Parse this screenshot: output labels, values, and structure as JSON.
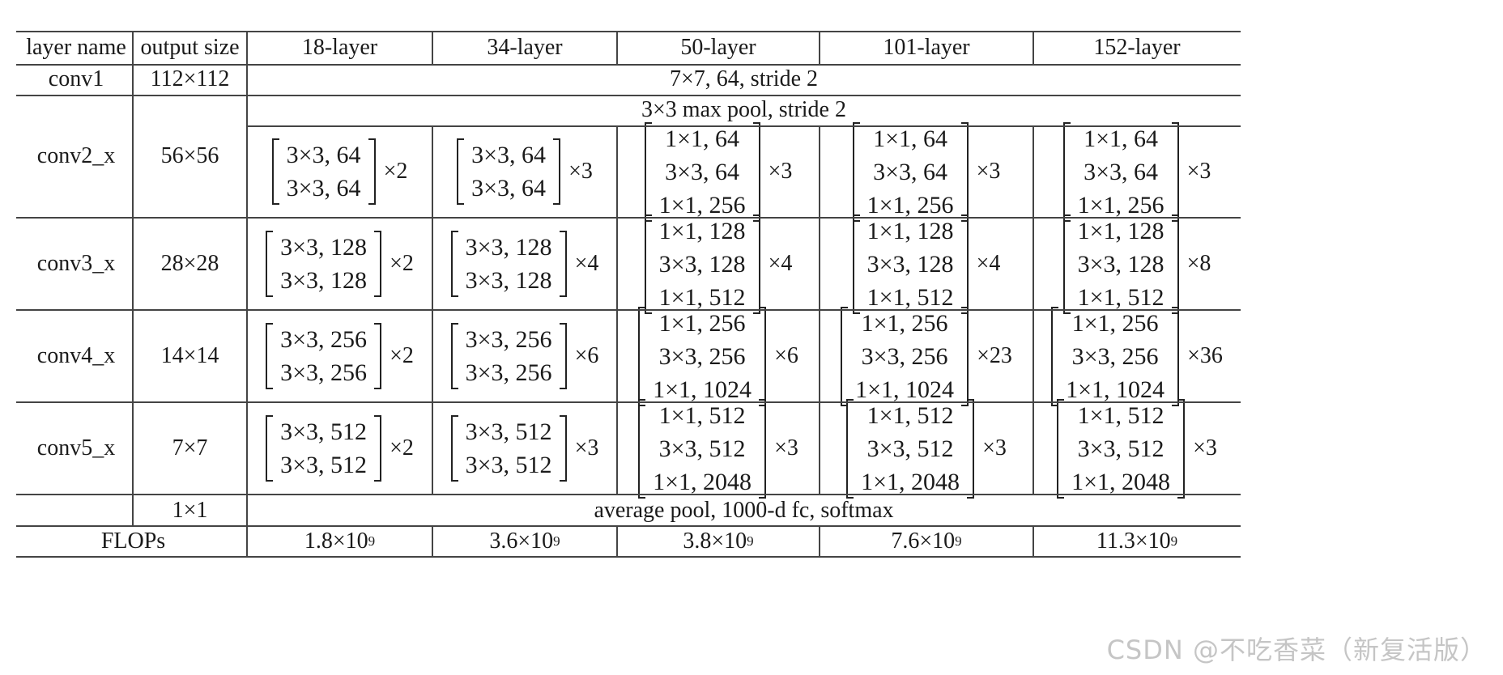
{
  "header": [
    "layer name",
    "output size",
    "18-layer",
    "34-layer",
    "50-layer",
    "101-layer",
    "152-layer"
  ],
  "conv1": {
    "name": "conv1",
    "size": "112×112",
    "desc": "7×7, 64, stride 2"
  },
  "pool": {
    "desc": "3×3 max pool, stride 2"
  },
  "rows": [
    {
      "name": "conv2_x",
      "size": "56×56",
      "blocks": [
        {
          "lines": [
            "3×3, 64",
            "3×3, 64"
          ],
          "mult": "×2"
        },
        {
          "lines": [
            "3×3, 64",
            "3×3, 64"
          ],
          "mult": "×3"
        },
        {
          "lines": [
            "1×1, 64",
            "3×3, 64",
            "1×1, 256"
          ],
          "mult": "×3"
        },
        {
          "lines": [
            "1×1, 64",
            "3×3, 64",
            "1×1, 256"
          ],
          "mult": "×3"
        },
        {
          "lines": [
            "1×1, 64",
            "3×3, 64",
            "1×1, 256"
          ],
          "mult": "×3"
        }
      ]
    },
    {
      "name": "conv3_x",
      "size": "28×28",
      "blocks": [
        {
          "lines": [
            "3×3, 128",
            "3×3, 128"
          ],
          "mult": "×2"
        },
        {
          "lines": [
            "3×3, 128",
            "3×3, 128"
          ],
          "mult": "×4"
        },
        {
          "lines": [
            "1×1, 128",
            "3×3, 128",
            "1×1, 512"
          ],
          "mult": "×4"
        },
        {
          "lines": [
            "1×1, 128",
            "3×3, 128",
            "1×1, 512"
          ],
          "mult": "×4"
        },
        {
          "lines": [
            "1×1, 128",
            "3×3, 128",
            "1×1, 512"
          ],
          "mult": "×8"
        }
      ]
    },
    {
      "name": "conv4_x",
      "size": "14×14",
      "blocks": [
        {
          "lines": [
            "3×3, 256",
            "3×3, 256"
          ],
          "mult": "×2"
        },
        {
          "lines": [
            "3×3, 256",
            "3×3, 256"
          ],
          "mult": "×6"
        },
        {
          "lines": [
            "1×1, 256",
            "3×3, 256",
            "1×1, 1024"
          ],
          "mult": "×6"
        },
        {
          "lines": [
            "1×1, 256",
            "3×3, 256",
            "1×1, 1024"
          ],
          "mult": "×23"
        },
        {
          "lines": [
            "1×1, 256",
            "3×3, 256",
            "1×1, 1024"
          ],
          "mult": "×36"
        }
      ]
    },
    {
      "name": "conv5_x",
      "size": "7×7",
      "blocks": [
        {
          "lines": [
            "3×3, 512",
            "3×3, 512"
          ],
          "mult": "×2"
        },
        {
          "lines": [
            "3×3, 512",
            "3×3, 512"
          ],
          "mult": "×3"
        },
        {
          "lines": [
            "1×1, 512",
            "3×3, 512",
            "1×1, 2048"
          ],
          "mult": "×3"
        },
        {
          "lines": [
            "1×1, 512",
            "3×3, 512",
            "1×1, 2048"
          ],
          "mult": "×3"
        },
        {
          "lines": [
            "1×1, 512",
            "3×3, 512",
            "1×1, 2048"
          ],
          "mult": "×3"
        }
      ]
    }
  ],
  "final": {
    "size": "1×1",
    "desc": "average pool, 1000-d fc, softmax"
  },
  "flops": {
    "label": "FLOPs",
    "values": [
      {
        "base": "1.8×10",
        "exp": "9"
      },
      {
        "base": "3.6×10",
        "exp": "9"
      },
      {
        "base": "3.8×10",
        "exp": "9"
      },
      {
        "base": "7.6×10",
        "exp": "9"
      },
      {
        "base": "11.3×10",
        "exp": "9"
      }
    ]
  },
  "watermark": "CSDN @不吃香菜（新复活版）"
}
